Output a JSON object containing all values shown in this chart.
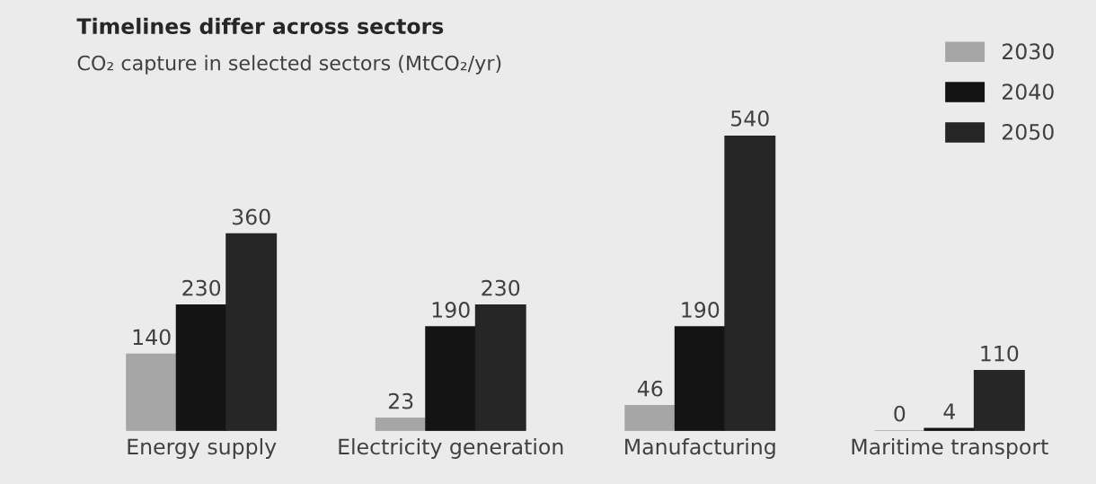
{
  "chart_data": {
    "type": "bar",
    "title": "Timelines differ across sectors",
    "subtitle": "CO₂ capture in selected sectors (MtCO₂/yr)",
    "categories": [
      "Energy supply",
      "Electricity generation",
      "Manufacturing",
      "Maritime transport"
    ],
    "series": [
      {
        "name": "2030",
        "color": "#a6a6a6",
        "values": [
          140,
          23,
          46,
          0
        ]
      },
      {
        "name": "2040",
        "color": "#141414",
        "values": [
          230,
          190,
          190,
          4
        ]
      },
      {
        "name": "2050",
        "color": "#262626",
        "values": [
          360,
          230,
          540,
          110
        ]
      }
    ],
    "data_labels": true,
    "legend": "top right",
    "grid": false
  }
}
